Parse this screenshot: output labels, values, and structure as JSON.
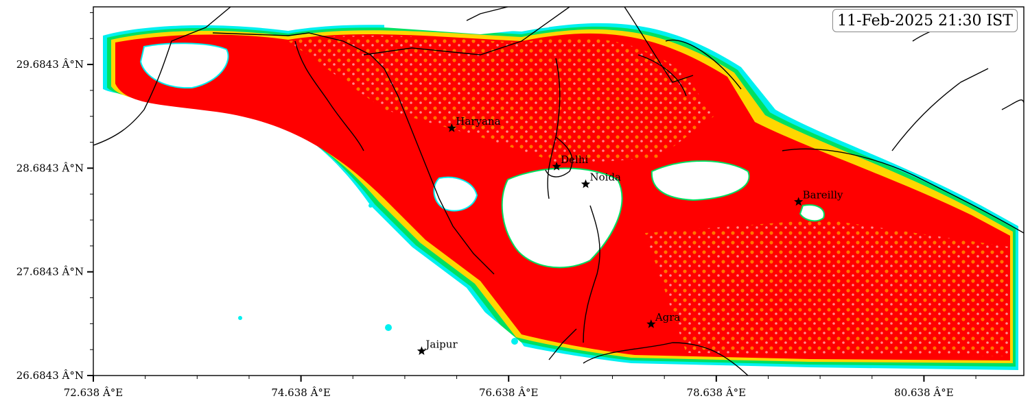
{
  "map": {
    "timestamp": "11-Feb-2025 21:30 IST",
    "x_axis": {
      "ticks": [
        {
          "value": 72.638,
          "label": "72.638 Â°E"
        },
        {
          "value": 74.638,
          "label": "74.638 Â°E"
        },
        {
          "value": 76.638,
          "label": "76.638 Â°E"
        },
        {
          "value": 78.638,
          "label": "78.638 Â°E"
        },
        {
          "value": 80.638,
          "label": "80.638 Â°E"
        }
      ],
      "range": [
        72.638,
        81.6
      ]
    },
    "y_axis": {
      "ticks": [
        {
          "value": 29.6843,
          "label": "29.6843 Â°N"
        },
        {
          "value": 28.6843,
          "label": "28.6843 Â°N"
        },
        {
          "value": 27.6843,
          "label": "27.6843 Â°N"
        },
        {
          "value": 26.6843,
          "label": "26.6843 Â°N"
        }
      ],
      "range": [
        26.6843,
        30.24
      ]
    },
    "cities": [
      {
        "name": "Haryana",
        "lon": 76.09,
        "lat": 29.07
      },
      {
        "name": "Delhi",
        "lon": 77.1,
        "lat": 28.7
      },
      {
        "name": "Noida",
        "lon": 77.38,
        "lat": 28.53
      },
      {
        "name": "Jaipur",
        "lon": 75.8,
        "lat": 26.92
      },
      {
        "name": "Agra",
        "lon": 78.01,
        "lat": 27.18
      },
      {
        "name": "Bareilly",
        "lon": 79.43,
        "lat": 28.36
      }
    ],
    "colors": {
      "severe": "#ff0000",
      "moderate": "#ffd700",
      "light": "#00e060",
      "very_light": "#00f0f0",
      "background": "#ffffff",
      "boundary": "#000000"
    }
  }
}
